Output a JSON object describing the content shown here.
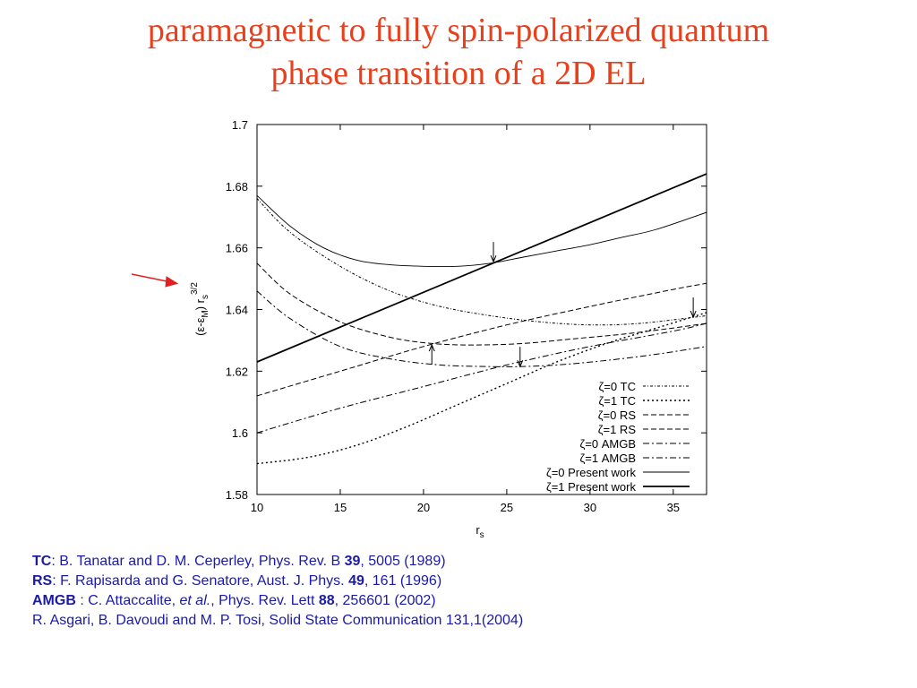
{
  "title": {
    "line1": "paramagnetic to fully spin-polarized quantum",
    "line2": "phase transition of a 2D EL"
  },
  "colors": {
    "title": "#e8401c",
    "arrow": "#e02020",
    "refs": "#1a1aa6"
  },
  "chart_data": {
    "type": "line",
    "xlabel": "r",
    "xlabel_sub": "s",
    "ylabel": "(ε-ε_M) r_s^{3/2}",
    "ylabel_parts": {
      "lead": "(ε-ε",
      "sub": "M",
      "mid": ") r",
      "sub2": "s",
      "sup": "3/2"
    },
    "xlim": [
      10,
      37
    ],
    "ylim": [
      1.58,
      1.7
    ],
    "xticks": [
      10,
      15,
      20,
      25,
      30,
      35
    ],
    "yticks": [
      "1.58",
      "1.6",
      "1.62",
      "1.64",
      "1.66",
      "1.68",
      "1.7"
    ],
    "grid": false,
    "legend_position": "bottom-right",
    "series": [
      {
        "name": "ζ=0  TC",
        "style": "dotted-dash",
        "x": [
          10,
          12,
          15,
          18,
          21,
          24,
          27,
          30,
          33,
          37
        ],
        "y": [
          1.676,
          1.665,
          1.654,
          1.646,
          1.641,
          1.638,
          1.636,
          1.635,
          1.6355,
          1.638
        ]
      },
      {
        "name": "ζ=1  TC",
        "style": "dotted",
        "x": [
          10,
          13,
          16,
          19,
          22,
          25,
          28,
          31,
          34,
          37
        ],
        "y": [
          1.59,
          1.592,
          1.596,
          1.602,
          1.609,
          1.616,
          1.623,
          1.629,
          1.634,
          1.639
        ]
      },
      {
        "name": "ζ=0  RS",
        "style": "dashed",
        "x": [
          10,
          12,
          15,
          18,
          20.5,
          23,
          26,
          29,
          32,
          35,
          37
        ],
        "y": [
          1.655,
          1.645,
          1.636,
          1.631,
          1.629,
          1.6285,
          1.629,
          1.6305,
          1.632,
          1.634,
          1.6355
        ]
      },
      {
        "name": "ζ=1  RS",
        "style": "dashed",
        "x": [
          10,
          15,
          20,
          25,
          30,
          35,
          37
        ],
        "y": [
          1.612,
          1.62,
          1.628,
          1.635,
          1.641,
          1.6465,
          1.6485
        ]
      },
      {
        "name": "ζ=0  AMGB",
        "style": "dash-dot",
        "x": [
          10,
          12,
          15,
          18,
          21,
          24,
          25.8,
          28,
          31,
          34,
          37
        ],
        "y": [
          1.646,
          1.637,
          1.628,
          1.624,
          1.622,
          1.6215,
          1.6215,
          1.622,
          1.6235,
          1.6255,
          1.628
        ]
      },
      {
        "name": "ζ=1  AMGB",
        "style": "dash-dot",
        "x": [
          10,
          15,
          20,
          25,
          30,
          35,
          37
        ],
        "y": [
          1.6,
          1.608,
          1.615,
          1.622,
          1.628,
          1.633,
          1.6355
        ]
      },
      {
        "name": "ζ=0  Present work",
        "style": "solid-thin",
        "x": [
          10,
          12,
          14,
          16,
          18,
          20,
          22,
          24,
          26,
          28,
          30,
          32,
          34,
          37
        ],
        "y": [
          1.677,
          1.667,
          1.66,
          1.656,
          1.6545,
          1.654,
          1.654,
          1.655,
          1.657,
          1.659,
          1.661,
          1.6635,
          1.666,
          1.6715
        ]
      },
      {
        "name": "ζ=1  Present work",
        "style": "solid-thick",
        "x": [
          10,
          37
        ],
        "y": [
          1.623,
          1.684
        ]
      }
    ],
    "annotations": [
      {
        "type": "arrow-down",
        "x": 24.2,
        "y": 1.6555
      },
      {
        "type": "arrow-up",
        "x": 20.5,
        "y": 1.6285
      },
      {
        "type": "arrow-down",
        "x": 25.8,
        "y": 1.6215
      },
      {
        "type": "arrow-down",
        "x": 36.2,
        "y": 1.6375
      }
    ]
  },
  "references": [
    {
      "abbr": "TC",
      "text": ": B. Tanatar and D. M. Ceperley, Phys. Rev. B ",
      "vol": "39",
      "rest": ", 5005 (1989)"
    },
    {
      "abbr": "RS",
      "text": ": F. Rapisarda and G. Senatore, Aust. J. Phys. ",
      "vol": "49",
      "rest": ", 161 (1996)"
    },
    {
      "abbr": "AMGB",
      "text": " : C. Attaccalite, ",
      "italic": "et al.",
      "text2": ", Phys. Rev. Lett ",
      "vol": "88",
      "rest": ", 256601 (2002)"
    },
    {
      "plain": "R. Asgari, B. Davoudi and M. P. Tosi, Solid State Communication 131,1(2004)"
    }
  ]
}
